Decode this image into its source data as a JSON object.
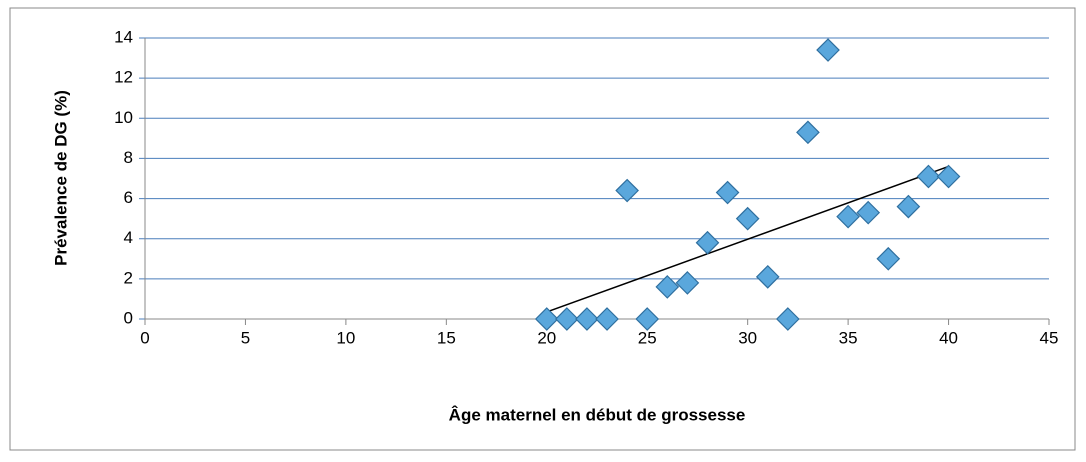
{
  "chart_data": {
    "type": "scatter",
    "x_label": "Âge maternel en début de grossesse",
    "y_label": "Prévalence de DG (%)",
    "series": [
      {
        "color": "#5aa7dc",
        "x": [
          20,
          21,
          22,
          23,
          24,
          25,
          26,
          27,
          28,
          29,
          30,
          31,
          32,
          33,
          34,
          35,
          36,
          37,
          38,
          39,
          40
        ],
        "values": [
          0,
          0,
          0,
          0,
          6.4,
          0,
          1.6,
          1.8,
          3.8,
          6.3,
          5.0,
          2.1,
          0,
          9.3,
          13.4,
          5.1,
          5.3,
          3.0,
          5.6,
          7.1,
          7.1
        ]
      }
    ],
    "trendline": {
      "color": "#000000",
      "x": [
        20,
        40
      ],
      "values": [
        0.35,
        7.6
      ]
    },
    "xlim": [
      0,
      45
    ],
    "xticks": [
      0,
      5,
      10,
      15,
      20,
      25,
      30,
      35,
      40,
      45
    ],
    "ylim": [
      0,
      14
    ],
    "yticks": [
      0,
      2,
      4,
      6,
      8,
      10,
      12,
      14
    ],
    "grid": true,
    "grid_color": "#4a7ebb"
  }
}
